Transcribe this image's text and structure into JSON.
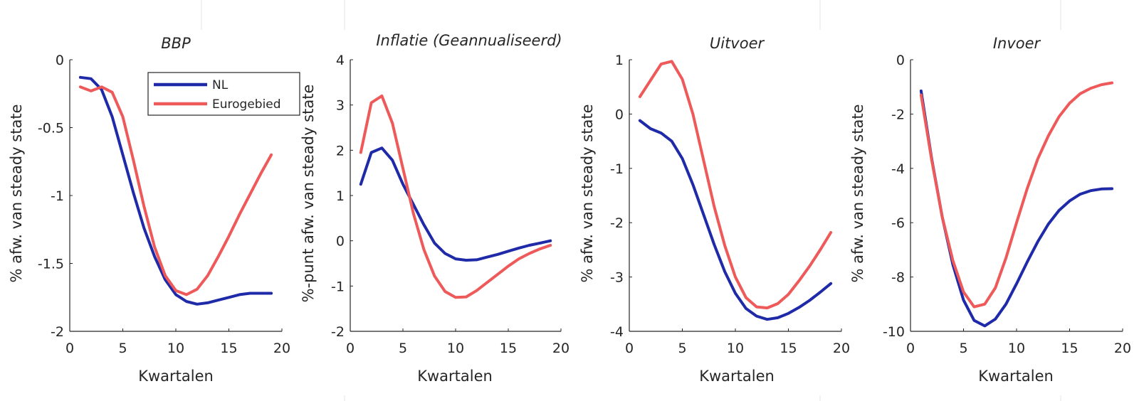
{
  "figure": {
    "background": "#ffffff"
  },
  "legend": {
    "location": "top-right of first panel",
    "entries": [
      {
        "label": "NL",
        "color": "#1f2aa8"
      },
      {
        "label": "Eurogebied",
        "color": "#ee5a5a"
      }
    ]
  },
  "chart_data": [
    {
      "type": "line",
      "title": "BBP",
      "xlabel": "Kwartalen",
      "ylabel": "% afw. van steady state",
      "xlim": [
        0,
        20
      ],
      "ylim": [
        -2,
        0
      ],
      "xticks": [
        0,
        5,
        10,
        15,
        20
      ],
      "yticks": [
        0,
        -0.5,
        -1,
        -1.5,
        -2
      ],
      "xticklabels": [
        "0",
        "5",
        "10",
        "15",
        "20"
      ],
      "yticklabels": [
        "0",
        "-0.5",
        "-1",
        "-1.5",
        "-2"
      ],
      "x": [
        1,
        2,
        3,
        4,
        5,
        6,
        7,
        8,
        9,
        10,
        11,
        12,
        13,
        14,
        15,
        16,
        17,
        18,
        19
      ],
      "series": [
        {
          "name": "NL",
          "color": "#1f2aa8",
          "values": [
            -0.13,
            -0.14,
            -0.22,
            -0.42,
            -0.7,
            -0.98,
            -1.24,
            -1.45,
            -1.62,
            -1.73,
            -1.78,
            -1.8,
            -1.79,
            -1.77,
            -1.75,
            -1.73,
            -1.72,
            -1.72,
            -1.72
          ]
        },
        {
          "name": "Eurogebied",
          "color": "#ee5a5a",
          "values": [
            -0.2,
            -0.23,
            -0.2,
            -0.24,
            -0.42,
            -0.74,
            -1.08,
            -1.38,
            -1.59,
            -1.7,
            -1.73,
            -1.69,
            -1.59,
            -1.45,
            -1.3,
            -1.14,
            -0.99,
            -0.84,
            -0.7
          ]
        }
      ]
    },
    {
      "type": "line",
      "title": "Inflatie (Geannualiseerd)",
      "xlabel": "Kwartalen",
      "ylabel": "%-punt afw. van steady state",
      "xlim": [
        0,
        20
      ],
      "ylim": [
        -2,
        4
      ],
      "xticks": [
        0,
        5,
        10,
        15,
        20
      ],
      "yticks": [
        4,
        3,
        2,
        1,
        0,
        -1,
        -2
      ],
      "xticklabels": [
        "0",
        "5",
        "10",
        "15",
        "20"
      ],
      "yticklabels": [
        "4",
        "3",
        "2",
        "1",
        "0",
        "-1",
        "-2"
      ],
      "x": [
        1,
        2,
        3,
        4,
        5,
        6,
        7,
        8,
        9,
        10,
        11,
        12,
        13,
        14,
        15,
        16,
        17,
        18,
        19
      ],
      "series": [
        {
          "name": "NL",
          "color": "#1f2aa8",
          "values": [
            1.25,
            1.95,
            2.05,
            1.78,
            1.25,
            0.8,
            0.35,
            -0.05,
            -0.28,
            -0.4,
            -0.43,
            -0.42,
            -0.36,
            -0.3,
            -0.23,
            -0.16,
            -0.1,
            -0.05,
            0.0
          ]
        },
        {
          "name": "Eurogebied",
          "color": "#ee5a5a",
          "values": [
            1.95,
            3.05,
            3.2,
            2.6,
            1.6,
            0.6,
            -0.2,
            -0.78,
            -1.12,
            -1.25,
            -1.24,
            -1.1,
            -0.92,
            -0.74,
            -0.56,
            -0.4,
            -0.28,
            -0.18,
            -0.1
          ]
        }
      ]
    },
    {
      "type": "line",
      "title": "Uitvoer",
      "xlabel": "Kwartalen",
      "ylabel": "% afw. van steady state",
      "xlim": [
        0,
        20
      ],
      "ylim": [
        -4,
        1
      ],
      "xticks": [
        0,
        5,
        10,
        15,
        20
      ],
      "yticks": [
        1,
        0,
        -1,
        -2,
        -3,
        -4
      ],
      "xticklabels": [
        "0",
        "5",
        "10",
        "15",
        "20"
      ],
      "yticklabels": [
        "1",
        "0",
        "-1",
        "-2",
        "-3",
        "-4"
      ],
      "x": [
        1,
        2,
        3,
        4,
        5,
        6,
        7,
        8,
        9,
        10,
        11,
        12,
        13,
        14,
        15,
        16,
        17,
        18,
        19
      ],
      "series": [
        {
          "name": "NL",
          "color": "#1f2aa8",
          "values": [
            -0.12,
            -0.27,
            -0.35,
            -0.5,
            -0.82,
            -1.3,
            -1.85,
            -2.4,
            -2.9,
            -3.3,
            -3.58,
            -3.72,
            -3.78,
            -3.75,
            -3.67,
            -3.56,
            -3.43,
            -3.28,
            -3.12
          ]
        },
        {
          "name": "Eurogebied",
          "color": "#ee5a5a",
          "values": [
            0.32,
            0.62,
            0.92,
            0.97,
            0.64,
            0.0,
            -0.85,
            -1.7,
            -2.42,
            -3.0,
            -3.38,
            -3.55,
            -3.57,
            -3.49,
            -3.32,
            -3.07,
            -2.8,
            -2.5,
            -2.18
          ]
        }
      ]
    },
    {
      "type": "line",
      "title": "Invoer",
      "xlabel": "Kwartalen",
      "ylabel": "% afw. van steady state",
      "xlim": [
        0,
        20
      ],
      "ylim": [
        -10,
        0
      ],
      "xticks": [
        0,
        5,
        10,
        15,
        20
      ],
      "yticks": [
        0,
        -2,
        -4,
        -6,
        -8,
        -10
      ],
      "xticklabels": [
        "0",
        "5",
        "10",
        "15",
        "20"
      ],
      "yticklabels": [
        "0",
        "-2",
        "-4",
        "-6",
        "-8",
        "-10"
      ],
      "x": [
        1,
        2,
        3,
        4,
        5,
        6,
        7,
        8,
        9,
        10,
        11,
        12,
        13,
        14,
        15,
        16,
        17,
        18,
        19
      ],
      "series": [
        {
          "name": "NL",
          "color": "#1f2aa8",
          "values": [
            -1.15,
            -3.65,
            -5.8,
            -7.55,
            -8.85,
            -9.6,
            -9.8,
            -9.55,
            -9.0,
            -8.25,
            -7.45,
            -6.7,
            -6.05,
            -5.55,
            -5.2,
            -4.95,
            -4.82,
            -4.76,
            -4.75
          ]
        },
        {
          "name": "Eurogebied",
          "color": "#ee5a5a",
          "values": [
            -1.3,
            -3.7,
            -5.8,
            -7.4,
            -8.55,
            -9.1,
            -9.0,
            -8.4,
            -7.3,
            -6.0,
            -4.75,
            -3.65,
            -2.8,
            -2.1,
            -1.6,
            -1.25,
            -1.05,
            -0.92,
            -0.85
          ]
        }
      ]
    }
  ]
}
